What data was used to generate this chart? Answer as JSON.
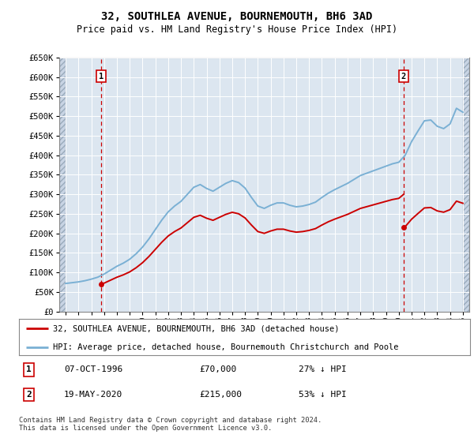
{
  "title": "32, SOUTHLEA AVENUE, BOURNEMOUTH, BH6 3AD",
  "subtitle": "Price paid vs. HM Land Registry's House Price Index (HPI)",
  "legend_line1": "32, SOUTHLEA AVENUE, BOURNEMOUTH, BH6 3AD (detached house)",
  "legend_line2": "HPI: Average price, detached house, Bournemouth Christchurch and Poole",
  "footnote": "Contains HM Land Registry data © Crown copyright and database right 2024.\nThis data is licensed under the Open Government Licence v3.0.",
  "transaction1_date": "07-OCT-1996",
  "transaction1_price": "£70,000",
  "transaction1_hpi": "27% ↓ HPI",
  "transaction1_year": 1996.77,
  "transaction1_value": 70000,
  "transaction2_date": "19-MAY-2020",
  "transaction2_price": "£215,000",
  "transaction2_hpi": "53% ↓ HPI",
  "transaction2_year": 2020.38,
  "transaction2_value": 215000,
  "hpi_color": "#7ab0d4",
  "price_color": "#cc0000",
  "marker_box_color": "#cc0000",
  "dashed_line_color": "#cc0000",
  "background_color": "#dce6f0",
  "ylim": [
    0,
    650000
  ],
  "xlim_start": 1993.5,
  "xlim_end": 2025.5
}
